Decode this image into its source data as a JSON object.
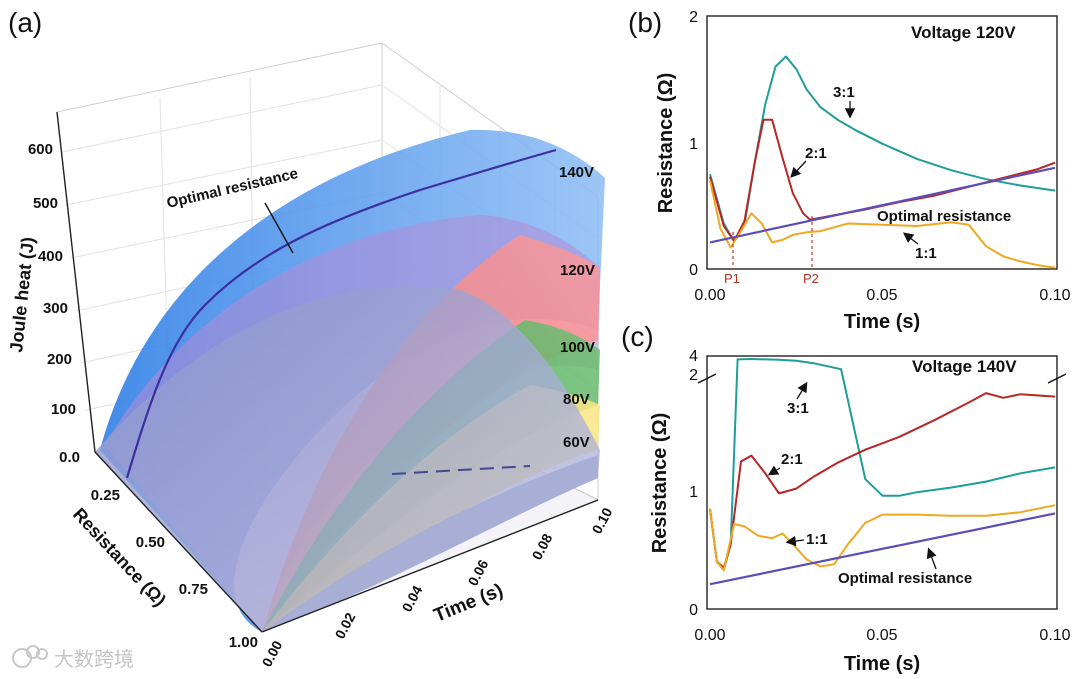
{
  "panels": {
    "a": "(a)",
    "b": "(b)",
    "c": "(c)"
  },
  "watermark": "大数跨境",
  "chart_data": [
    {
      "id": "a",
      "type": "area",
      "title": "",
      "zlabel": "Joule heat (J)",
      "xlabel": "Time (s)",
      "ylabel": "Resistance (Ω)",
      "z_ticks": [
        "0.0",
        "100",
        "200",
        "300",
        "400",
        "500",
        "600"
      ],
      "x_ticks": [
        "0.00",
        "0.02",
        "0.04",
        "0.06",
        "0.08",
        "0.10"
      ],
      "y_ticks": [
        "0.25",
        "0.50",
        "0.75",
        "1.00"
      ],
      "surfaces": [
        {
          "name": "140V",
          "color": "#3f8ee8"
        },
        {
          "name": "120V",
          "color": "#f26a6a"
        },
        {
          "name": "100V",
          "color": "#3fa24b"
        },
        {
          "name": "80V",
          "color": "#f2d34a"
        },
        {
          "name": "60V",
          "color": "#8f96c7"
        }
      ],
      "annotation": "Optimal resistance"
    },
    {
      "id": "b",
      "type": "line",
      "title": "Voltage 120V",
      "xlabel": "Time (s)",
      "ylabel": "Resistance (Ω)",
      "xlim": [
        0,
        0.1
      ],
      "ylim": [
        0,
        2
      ],
      "x_ticks": [
        "0.00",
        "0.05",
        "0.10"
      ],
      "y_ticks": [
        "0",
        "1",
        "2"
      ],
      "markers": [
        {
          "label": "P1",
          "x": 0.006
        },
        {
          "label": "P2",
          "x": 0.029
        }
      ],
      "series": [
        {
          "name": "3:1",
          "color": "#1e9e9a",
          "x": [
            0,
            0.004,
            0.007,
            0.01,
            0.013,
            0.016,
            0.019,
            0.022,
            0.025,
            0.028,
            0.032,
            0.037,
            0.042,
            0.05,
            0.06,
            0.07,
            0.08,
            0.09,
            0.1
          ],
          "y": [
            0.75,
            0.36,
            0.22,
            0.35,
            0.85,
            1.3,
            1.6,
            1.68,
            1.58,
            1.42,
            1.28,
            1.18,
            1.1,
            0.99,
            0.87,
            0.78,
            0.71,
            0.66,
            0.62
          ]
        },
        {
          "name": "2:1",
          "color": "#b82626",
          "x": [
            0,
            0.004,
            0.007,
            0.01,
            0.013,
            0.0155,
            0.018,
            0.021,
            0.024,
            0.027,
            0.029,
            0.035,
            0.045,
            0.055,
            0.065,
            0.075,
            0.085,
            0.095,
            0.1
          ],
          "y": [
            0.73,
            0.34,
            0.22,
            0.38,
            0.85,
            1.18,
            1.18,
            0.88,
            0.6,
            0.44,
            0.39,
            0.42,
            0.47,
            0.53,
            0.58,
            0.65,
            0.72,
            0.79,
            0.84
          ]
        },
        {
          "name": "1:1",
          "color": "#f0a820",
          "x": [
            0,
            0.003,
            0.006,
            0.009,
            0.012,
            0.015,
            0.018,
            0.021,
            0.024,
            0.028,
            0.032,
            0.036,
            0.04,
            0.05,
            0.06,
            0.07,
            0.075,
            0.08,
            0.085,
            0.09,
            0.095,
            0.1
          ],
          "y": [
            0.7,
            0.32,
            0.17,
            0.3,
            0.44,
            0.36,
            0.21,
            0.23,
            0.27,
            0.29,
            0.3,
            0.33,
            0.36,
            0.35,
            0.34,
            0.37,
            0.35,
            0.18,
            0.1,
            0.06,
            0.03,
            0.01
          ]
        },
        {
          "name": "Optimal resistance",
          "color": "#5a4fb8",
          "x": [
            0,
            0.1
          ],
          "y": [
            0.21,
            0.8
          ]
        }
      ]
    },
    {
      "id": "c",
      "type": "line",
      "title": "Voltage 140V",
      "xlabel": "Time (s)",
      "ylabel": "Resistance (Ω)",
      "xlim": [
        0,
        0.1
      ],
      "ylim": [
        0,
        4
      ],
      "axis_break": "between 2 and 4",
      "x_ticks": [
        "0.00",
        "0.05",
        "0.10"
      ],
      "y_ticks": [
        "0",
        "1",
        "2",
        "4"
      ],
      "series": [
        {
          "name": "3:1",
          "color": "#1e9e9a",
          "x": [
            0,
            0.002,
            0.004,
            0.006,
            0.008,
            0.012,
            0.02,
            0.025,
            0.03,
            0.034,
            0.038,
            0.042,
            0.045,
            0.05,
            0.055,
            0.06,
            0.07,
            0.08,
            0.09,
            0.1
          ],
          "y": [
            0.85,
            0.4,
            0.33,
            0.55,
            3.6,
            3.65,
            3.55,
            3.45,
            3.15,
            2.8,
            2.45,
            1.5,
            1.1,
            0.96,
            0.96,
            0.99,
            1.03,
            1.08,
            1.15,
            1.2
          ]
        },
        {
          "name": "2:1",
          "color": "#b82626",
          "x": [
            0,
            0.002,
            0.004,
            0.006,
            0.009,
            0.012,
            0.016,
            0.02,
            0.025,
            0.03,
            0.037,
            0.045,
            0.055,
            0.065,
            0.075,
            0.08,
            0.085,
            0.09,
            0.1
          ],
          "y": [
            0.85,
            0.4,
            0.35,
            0.55,
            1.25,
            1.3,
            1.15,
            0.98,
            1.02,
            1.12,
            1.24,
            1.35,
            1.46,
            1.6,
            1.75,
            1.83,
            1.79,
            1.82,
            1.8
          ]
        },
        {
          "name": "1:1",
          "color": "#f0a820",
          "x": [
            0,
            0.002,
            0.004,
            0.007,
            0.01,
            0.014,
            0.018,
            0.021,
            0.024,
            0.028,
            0.032,
            0.036,
            0.04,
            0.045,
            0.05,
            0.06,
            0.07,
            0.08,
            0.09,
            0.1
          ],
          "y": [
            0.85,
            0.4,
            0.33,
            0.72,
            0.7,
            0.62,
            0.6,
            0.64,
            0.55,
            0.42,
            0.36,
            0.38,
            0.55,
            0.73,
            0.8,
            0.8,
            0.79,
            0.79,
            0.82,
            0.88
          ]
        },
        {
          "name": "Optimal resistance",
          "color": "#5a4fb8",
          "x": [
            0,
            0.1
          ],
          "y": [
            0.21,
            0.81
          ]
        }
      ]
    }
  ]
}
